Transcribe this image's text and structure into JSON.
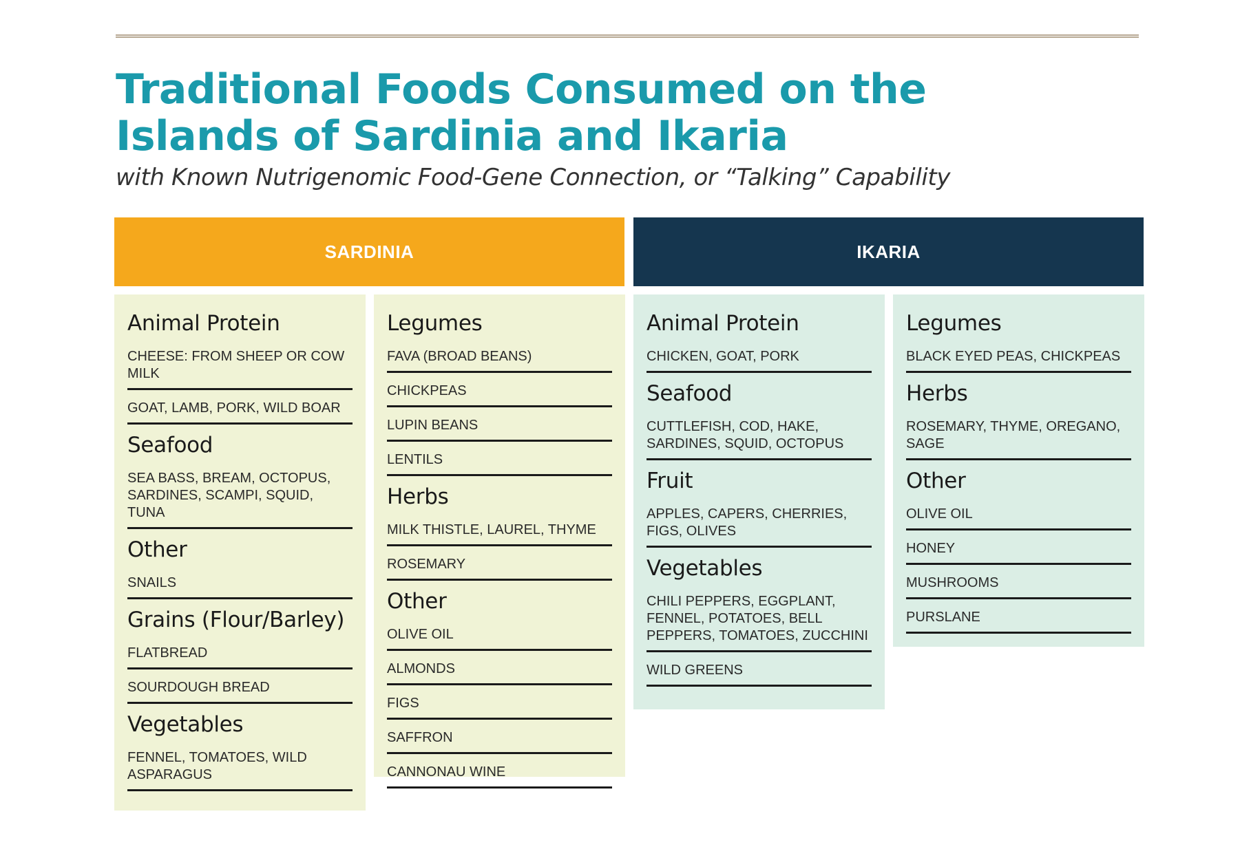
{
  "title_line1": "Traditional Foods Consumed on the",
  "title_line2": "Islands of Sardinia and Ikaria",
  "subtitle": "with Known Nutrigenomic Food-Gene Connection, or “Talking” Capability",
  "colors": {
    "title": "#1a9aab",
    "sardinia": "#f5a81c",
    "ikaria": "#15364f",
    "sardinia_bg": "#f0f3d6",
    "ikaria_bg": "#dbeee5"
  },
  "sardinia": {
    "label": "SARDINIA",
    "col1": [
      {
        "title": "Animal Protein",
        "items": [
          "CHEESE: FROM SHEEP OR COW MILK",
          "GOAT, LAMB, PORK, WILD BOAR"
        ]
      },
      {
        "title": "Seafood",
        "items": [
          "SEA BASS, BREAM, OCTOPUS, SARDINES, SCAMPI, SQUID, TUNA"
        ]
      },
      {
        "title": "Other",
        "items": [
          "SNAILS"
        ]
      },
      {
        "title": "Grains (Flour/Barley)",
        "items": [
          "FLATBREAD",
          "SOURDOUGH BREAD"
        ]
      },
      {
        "title": "Vegetables",
        "items": [
          "FENNEL, TOMATOES, WILD ASPARAGUS"
        ]
      }
    ],
    "col2": [
      {
        "title": "Legumes",
        "items": [
          "FAVA (BROAD BEANS)",
          "CHICKPEAS",
          "LUPIN BEANS",
          "LENTILS"
        ]
      },
      {
        "title": "Herbs",
        "items": [
          "MILK THISTLE, LAUREL, THYME",
          "ROSEMARY"
        ]
      },
      {
        "title": "Other",
        "items": [
          "OLIVE OIL",
          "ALMONDS",
          "FIGS",
          "SAFFRON",
          "CANNONAU WINE"
        ]
      }
    ]
  },
  "ikaria": {
    "label": "IKARIA",
    "col1": [
      {
        "title": "Animal Protein",
        "items": [
          "CHICKEN, GOAT, PORK"
        ]
      },
      {
        "title": "Seafood",
        "items": [
          "CUTTLEFISH, COD, HAKE, SARDINES, SQUID, OCTOPUS"
        ]
      },
      {
        "title": "Fruit",
        "items": [
          "APPLES, CAPERS, CHERRIES, FIGS, OLIVES"
        ]
      },
      {
        "title": "Vegetables",
        "items": [
          "CHILI PEPPERS, EGGPLANT, FENNEL, POTATOES, BELL PEPPERS, TOMATOES, ZUCCHINI",
          "WILD GREENS"
        ]
      }
    ],
    "col2": [
      {
        "title": "Legumes",
        "items": [
          "BLACK EYED PEAS, CHICKPEAS"
        ]
      },
      {
        "title": "Herbs",
        "items": [
          "ROSEMARY, THYME, OREGANO, SAGE"
        ]
      },
      {
        "title": "Other",
        "items": [
          "OLIVE OIL",
          "HONEY",
          "MUSHROOMS",
          "PURSLANE"
        ]
      }
    ]
  }
}
